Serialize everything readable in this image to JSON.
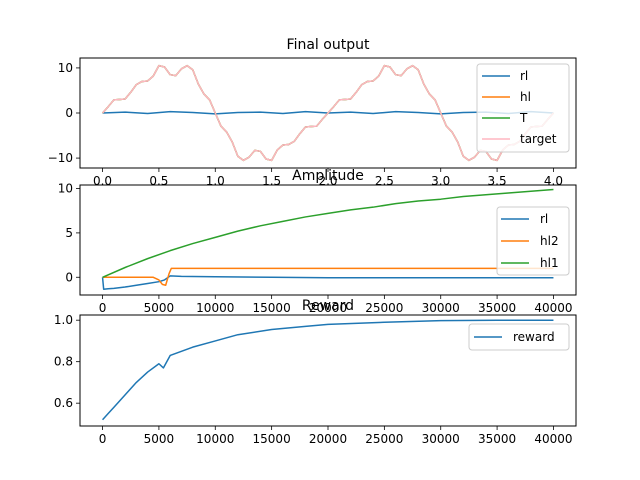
{
  "chart_data": [
    {
      "type": "line",
      "title": "Final output",
      "xlabel": "",
      "ylabel": "",
      "xlim": [
        -0.2,
        4.2
      ],
      "ylim": [
        -12.2,
        12.2
      ],
      "xticks": [
        0.0,
        0.5,
        1.0,
        1.5,
        2.0,
        2.5,
        3.0,
        3.5,
        4.0
      ],
      "xtick_labels": [
        "0.0",
        "0.5",
        "1.0",
        "1.5",
        "2.0",
        "2.5",
        "3.0",
        "3.5",
        "4.0"
      ],
      "yticks": [
        -10,
        0,
        10
      ],
      "ytick_labels": [
        "−10",
        "0",
        "10"
      ],
      "legend": {
        "position": "right",
        "entries": [
          "rl",
          "hl",
          "T",
          "target"
        ]
      },
      "series": [
        {
          "name": "rl",
          "color": "#1f77b4",
          "x": [
            0.0,
            0.2,
            0.4,
            0.6,
            0.8,
            1.0,
            1.2,
            1.4,
            1.6,
            1.8,
            2.0,
            2.2,
            2.4,
            2.6,
            2.8,
            3.0,
            3.2,
            3.4,
            3.6,
            3.8,
            4.0
          ],
          "y": [
            0.0,
            0.2,
            -0.1,
            0.3,
            0.1,
            -0.2,
            0.1,
            0.2,
            -0.1,
            0.3,
            0.0,
            0.2,
            -0.1,
            0.3,
            0.1,
            -0.2,
            0.1,
            0.2,
            -0.1,
            0.3,
            0.0
          ]
        },
        {
          "name": "hl",
          "color": "#ff7f0e",
          "x": [
            0.0,
            0.05,
            0.1,
            0.15,
            0.2,
            0.25,
            0.3,
            0.35,
            0.4,
            0.45,
            0.5,
            0.55,
            0.6,
            0.65,
            0.7,
            0.75,
            0.8,
            0.85,
            0.9,
            0.95,
            1.0,
            1.05,
            1.1,
            1.15,
            1.2,
            1.25,
            1.3,
            1.35,
            1.4,
            1.45,
            1.5,
            1.55,
            1.6,
            1.65,
            1.7,
            1.75,
            1.8,
            1.85,
            1.9,
            1.95,
            2.0,
            2.05,
            2.1,
            2.15,
            2.2,
            2.25,
            2.3,
            2.35,
            2.4,
            2.45,
            2.5,
            2.55,
            2.6,
            2.65,
            2.7,
            2.75,
            2.8,
            2.85,
            2.9,
            2.95,
            3.0,
            3.05,
            3.1,
            3.15,
            3.2,
            3.25,
            3.3,
            3.35,
            3.4,
            3.45,
            3.5,
            3.55,
            3.6,
            3.65,
            3.7,
            3.75,
            3.8,
            3.85,
            3.9,
            3.95,
            4.0
          ],
          "y": [
            0.0,
            1.4,
            2.9,
            3.0,
            3.1,
            4.6,
            6.3,
            7.0,
            7.1,
            8.2,
            10.5,
            10.2,
            8.5,
            8.3,
            9.8,
            10.5,
            9.6,
            6.4,
            4.2,
            2.9,
            0.0,
            -2.9,
            -4.2,
            -6.4,
            -9.6,
            -10.5,
            -9.8,
            -8.3,
            -8.5,
            -10.2,
            -10.5,
            -8.2,
            -7.1,
            -7.0,
            -6.3,
            -4.6,
            -3.1,
            -3.0,
            -2.9,
            -1.4,
            0.0,
            1.4,
            2.9,
            3.0,
            3.1,
            4.6,
            6.3,
            7.0,
            7.1,
            8.2,
            10.5,
            10.2,
            8.5,
            8.3,
            9.8,
            10.5,
            9.6,
            6.4,
            4.2,
            2.9,
            0.0,
            -2.9,
            -4.2,
            -6.4,
            -9.6,
            -10.5,
            -9.8,
            -8.3,
            -8.5,
            -10.2,
            -10.5,
            -8.2,
            -7.1,
            -7.0,
            -6.3,
            -4.6,
            -3.1,
            -3.0,
            -2.9,
            -1.4,
            0.0
          ]
        },
        {
          "name": "T",
          "color": "#2ca02c",
          "x": [
            0.0,
            0.05,
            0.1,
            0.15,
            0.2,
            0.25,
            0.3,
            0.35,
            0.4,
            0.45,
            0.5,
            0.55,
            0.6,
            0.65,
            0.7,
            0.75,
            0.8,
            0.85,
            0.9,
            0.95,
            1.0,
            1.05,
            1.1,
            1.15,
            1.2,
            1.25,
            1.3,
            1.35,
            1.4,
            1.45,
            1.5,
            1.55,
            1.6,
            1.65,
            1.7,
            1.75,
            1.8,
            1.85,
            1.9,
            1.95,
            2.0,
            2.05,
            2.1,
            2.15,
            2.2,
            2.25,
            2.3,
            2.35,
            2.4,
            2.45,
            2.5,
            2.55,
            2.6,
            2.65,
            2.7,
            2.75,
            2.8,
            2.85,
            2.9,
            2.95,
            3.0,
            3.05,
            3.1,
            3.15,
            3.2,
            3.25,
            3.3,
            3.35,
            3.4,
            3.45,
            3.5,
            3.55,
            3.6,
            3.65,
            3.7,
            3.75,
            3.8,
            3.85,
            3.9,
            3.95,
            4.0
          ],
          "y": [
            0.0,
            1.4,
            2.9,
            3.0,
            3.1,
            4.6,
            6.3,
            7.0,
            7.1,
            8.2,
            10.5,
            10.2,
            8.5,
            8.3,
            9.8,
            10.5,
            9.6,
            6.4,
            4.2,
            2.9,
            0.0,
            -2.9,
            -4.2,
            -6.4,
            -9.6,
            -10.5,
            -9.8,
            -8.3,
            -8.5,
            -10.2,
            -10.5,
            -8.2,
            -7.1,
            -7.0,
            -6.3,
            -4.6,
            -3.1,
            -3.0,
            -2.9,
            -1.4,
            0.0,
            1.4,
            2.9,
            3.0,
            3.1,
            4.6,
            6.3,
            7.0,
            7.1,
            8.2,
            10.5,
            10.2,
            8.5,
            8.3,
            9.8,
            10.5,
            9.6,
            6.4,
            4.2,
            2.9,
            0.0,
            -2.9,
            -4.2,
            -6.4,
            -9.6,
            -10.5,
            -9.8,
            -8.3,
            -8.5,
            -10.2,
            -10.5,
            -8.2,
            -7.1,
            -7.0,
            -6.3,
            -4.6,
            -3.1,
            -3.0,
            -2.9,
            -1.4,
            0.0
          ]
        },
        {
          "name": "target",
          "color": "#ffb6c1",
          "x": [
            0.0,
            0.05,
            0.1,
            0.15,
            0.2,
            0.25,
            0.3,
            0.35,
            0.4,
            0.45,
            0.5,
            0.55,
            0.6,
            0.65,
            0.7,
            0.75,
            0.8,
            0.85,
            0.9,
            0.95,
            1.0,
            1.05,
            1.1,
            1.15,
            1.2,
            1.25,
            1.3,
            1.35,
            1.4,
            1.45,
            1.5,
            1.55,
            1.6,
            1.65,
            1.7,
            1.75,
            1.8,
            1.85,
            1.9,
            1.95,
            2.0,
            2.05,
            2.1,
            2.15,
            2.2,
            2.25,
            2.3,
            2.35,
            2.4,
            2.45,
            2.5,
            2.55,
            2.6,
            2.65,
            2.7,
            2.75,
            2.8,
            2.85,
            2.9,
            2.95,
            3.0,
            3.05,
            3.1,
            3.15,
            3.2,
            3.25,
            3.3,
            3.35,
            3.4,
            3.45,
            3.5,
            3.55,
            3.6,
            3.65,
            3.7,
            3.75,
            3.8,
            3.85,
            3.9,
            3.95,
            4.0
          ],
          "y": [
            0.0,
            1.4,
            2.9,
            3.0,
            3.1,
            4.6,
            6.3,
            7.0,
            7.1,
            8.2,
            10.5,
            10.2,
            8.5,
            8.3,
            9.8,
            10.5,
            9.6,
            6.4,
            4.2,
            2.9,
            0.0,
            -2.9,
            -4.2,
            -6.4,
            -9.6,
            -10.5,
            -9.8,
            -8.3,
            -8.5,
            -10.2,
            -10.5,
            -8.2,
            -7.1,
            -7.0,
            -6.3,
            -4.6,
            -3.1,
            -3.0,
            -2.9,
            -1.4,
            0.0,
            1.4,
            2.9,
            3.0,
            3.1,
            4.6,
            6.3,
            7.0,
            7.1,
            8.2,
            10.5,
            10.2,
            8.5,
            8.3,
            9.8,
            10.5,
            9.6,
            6.4,
            4.2,
            2.9,
            0.0,
            -2.9,
            -4.2,
            -6.4,
            -9.6,
            -10.5,
            -9.8,
            -8.3,
            -8.5,
            -10.2,
            -10.5,
            -8.2,
            -7.1,
            -7.0,
            -6.3,
            -4.6,
            -3.1,
            -3.0,
            -2.9,
            -1.4,
            0.0
          ]
        }
      ]
    },
    {
      "type": "line",
      "title": "Amplitude",
      "xlabel": "",
      "ylabel": "",
      "xlim": [
        -2000,
        42000
      ],
      "ylim": [
        -2.0,
        10.4
      ],
      "xticks": [
        0,
        5000,
        10000,
        15000,
        20000,
        25000,
        30000,
        35000,
        40000
      ],
      "xtick_labels": [
        "0",
        "5000",
        "10000",
        "15000",
        "20000",
        "25000",
        "30000",
        "35000",
        "40000"
      ],
      "yticks": [
        0,
        5,
        10
      ],
      "ytick_labels": [
        "0",
        "5",
        "10"
      ],
      "legend": {
        "position": "right",
        "entries": [
          "rl",
          "hl2",
          "hl1"
        ]
      },
      "series": [
        {
          "name": "rl",
          "color": "#1f77b4",
          "x": [
            0,
            100,
            500,
            1000,
            2000,
            3000,
            4000,
            5000,
            5500,
            6000,
            7000,
            10000,
            15000,
            20000,
            25000,
            30000,
            35000,
            40000
          ],
          "y": [
            0.0,
            -1.35,
            -1.3,
            -1.25,
            -1.1,
            -0.9,
            -0.7,
            -0.5,
            -0.3,
            0.15,
            0.1,
            0.05,
            0.0,
            -0.05,
            -0.05,
            -0.05,
            -0.05,
            -0.05
          ]
        },
        {
          "name": "hl2",
          "color": "#ff7f0e",
          "x": [
            0,
            4500,
            5000,
            5300,
            5600,
            5900,
            6100,
            6500,
            8000,
            10000,
            15000,
            20000,
            25000,
            30000,
            35000,
            40000
          ],
          "y": [
            0.0,
            0.0,
            -0.3,
            -0.8,
            -0.9,
            0.4,
            1.0,
            1.0,
            1.0,
            1.0,
            1.0,
            1.0,
            1.0,
            1.0,
            1.0,
            1.0
          ]
        },
        {
          "name": "hl1",
          "color": "#2ca02c",
          "x": [
            0,
            2000,
            4000,
            6000,
            8000,
            10000,
            12000,
            14000,
            16000,
            18000,
            20000,
            22000,
            24000,
            26000,
            28000,
            30000,
            32000,
            34000,
            36000,
            38000,
            40000
          ],
          "y": [
            0.0,
            1.1,
            2.1,
            3.0,
            3.8,
            4.5,
            5.2,
            5.8,
            6.3,
            6.8,
            7.2,
            7.6,
            7.9,
            8.3,
            8.6,
            8.8,
            9.1,
            9.3,
            9.5,
            9.7,
            9.9
          ]
        }
      ]
    },
    {
      "type": "line",
      "title": "Reward",
      "xlabel": "",
      "ylabel": "",
      "xlim": [
        -2000,
        42000
      ],
      "ylim": [
        0.49,
        1.025
      ],
      "xticks": [
        0,
        5000,
        10000,
        15000,
        20000,
        25000,
        30000,
        35000,
        40000
      ],
      "xtick_labels": [
        "0",
        "5000",
        "10000",
        "15000",
        "20000",
        "25000",
        "30000",
        "35000",
        "40000"
      ],
      "yticks": [
        0.6,
        0.8,
        1.0
      ],
      "ytick_labels": [
        "0.6",
        "0.8",
        "1.0"
      ],
      "legend": {
        "position": "top-right",
        "entries": [
          "reward"
        ]
      },
      "series": [
        {
          "name": "reward",
          "color": "#1f77b4",
          "x": [
            0,
            500,
            1000,
            2000,
            3000,
            4000,
            5000,
            5400,
            5600,
            6000,
            7000,
            8000,
            10000,
            12000,
            15000,
            18000,
            20000,
            25000,
            30000,
            35000,
            40000
          ],
          "y": [
            0.52,
            0.55,
            0.58,
            0.64,
            0.7,
            0.75,
            0.79,
            0.77,
            0.79,
            0.83,
            0.85,
            0.87,
            0.9,
            0.93,
            0.955,
            0.97,
            0.98,
            0.99,
            0.998,
            1.0,
            1.0
          ]
        }
      ]
    }
  ]
}
